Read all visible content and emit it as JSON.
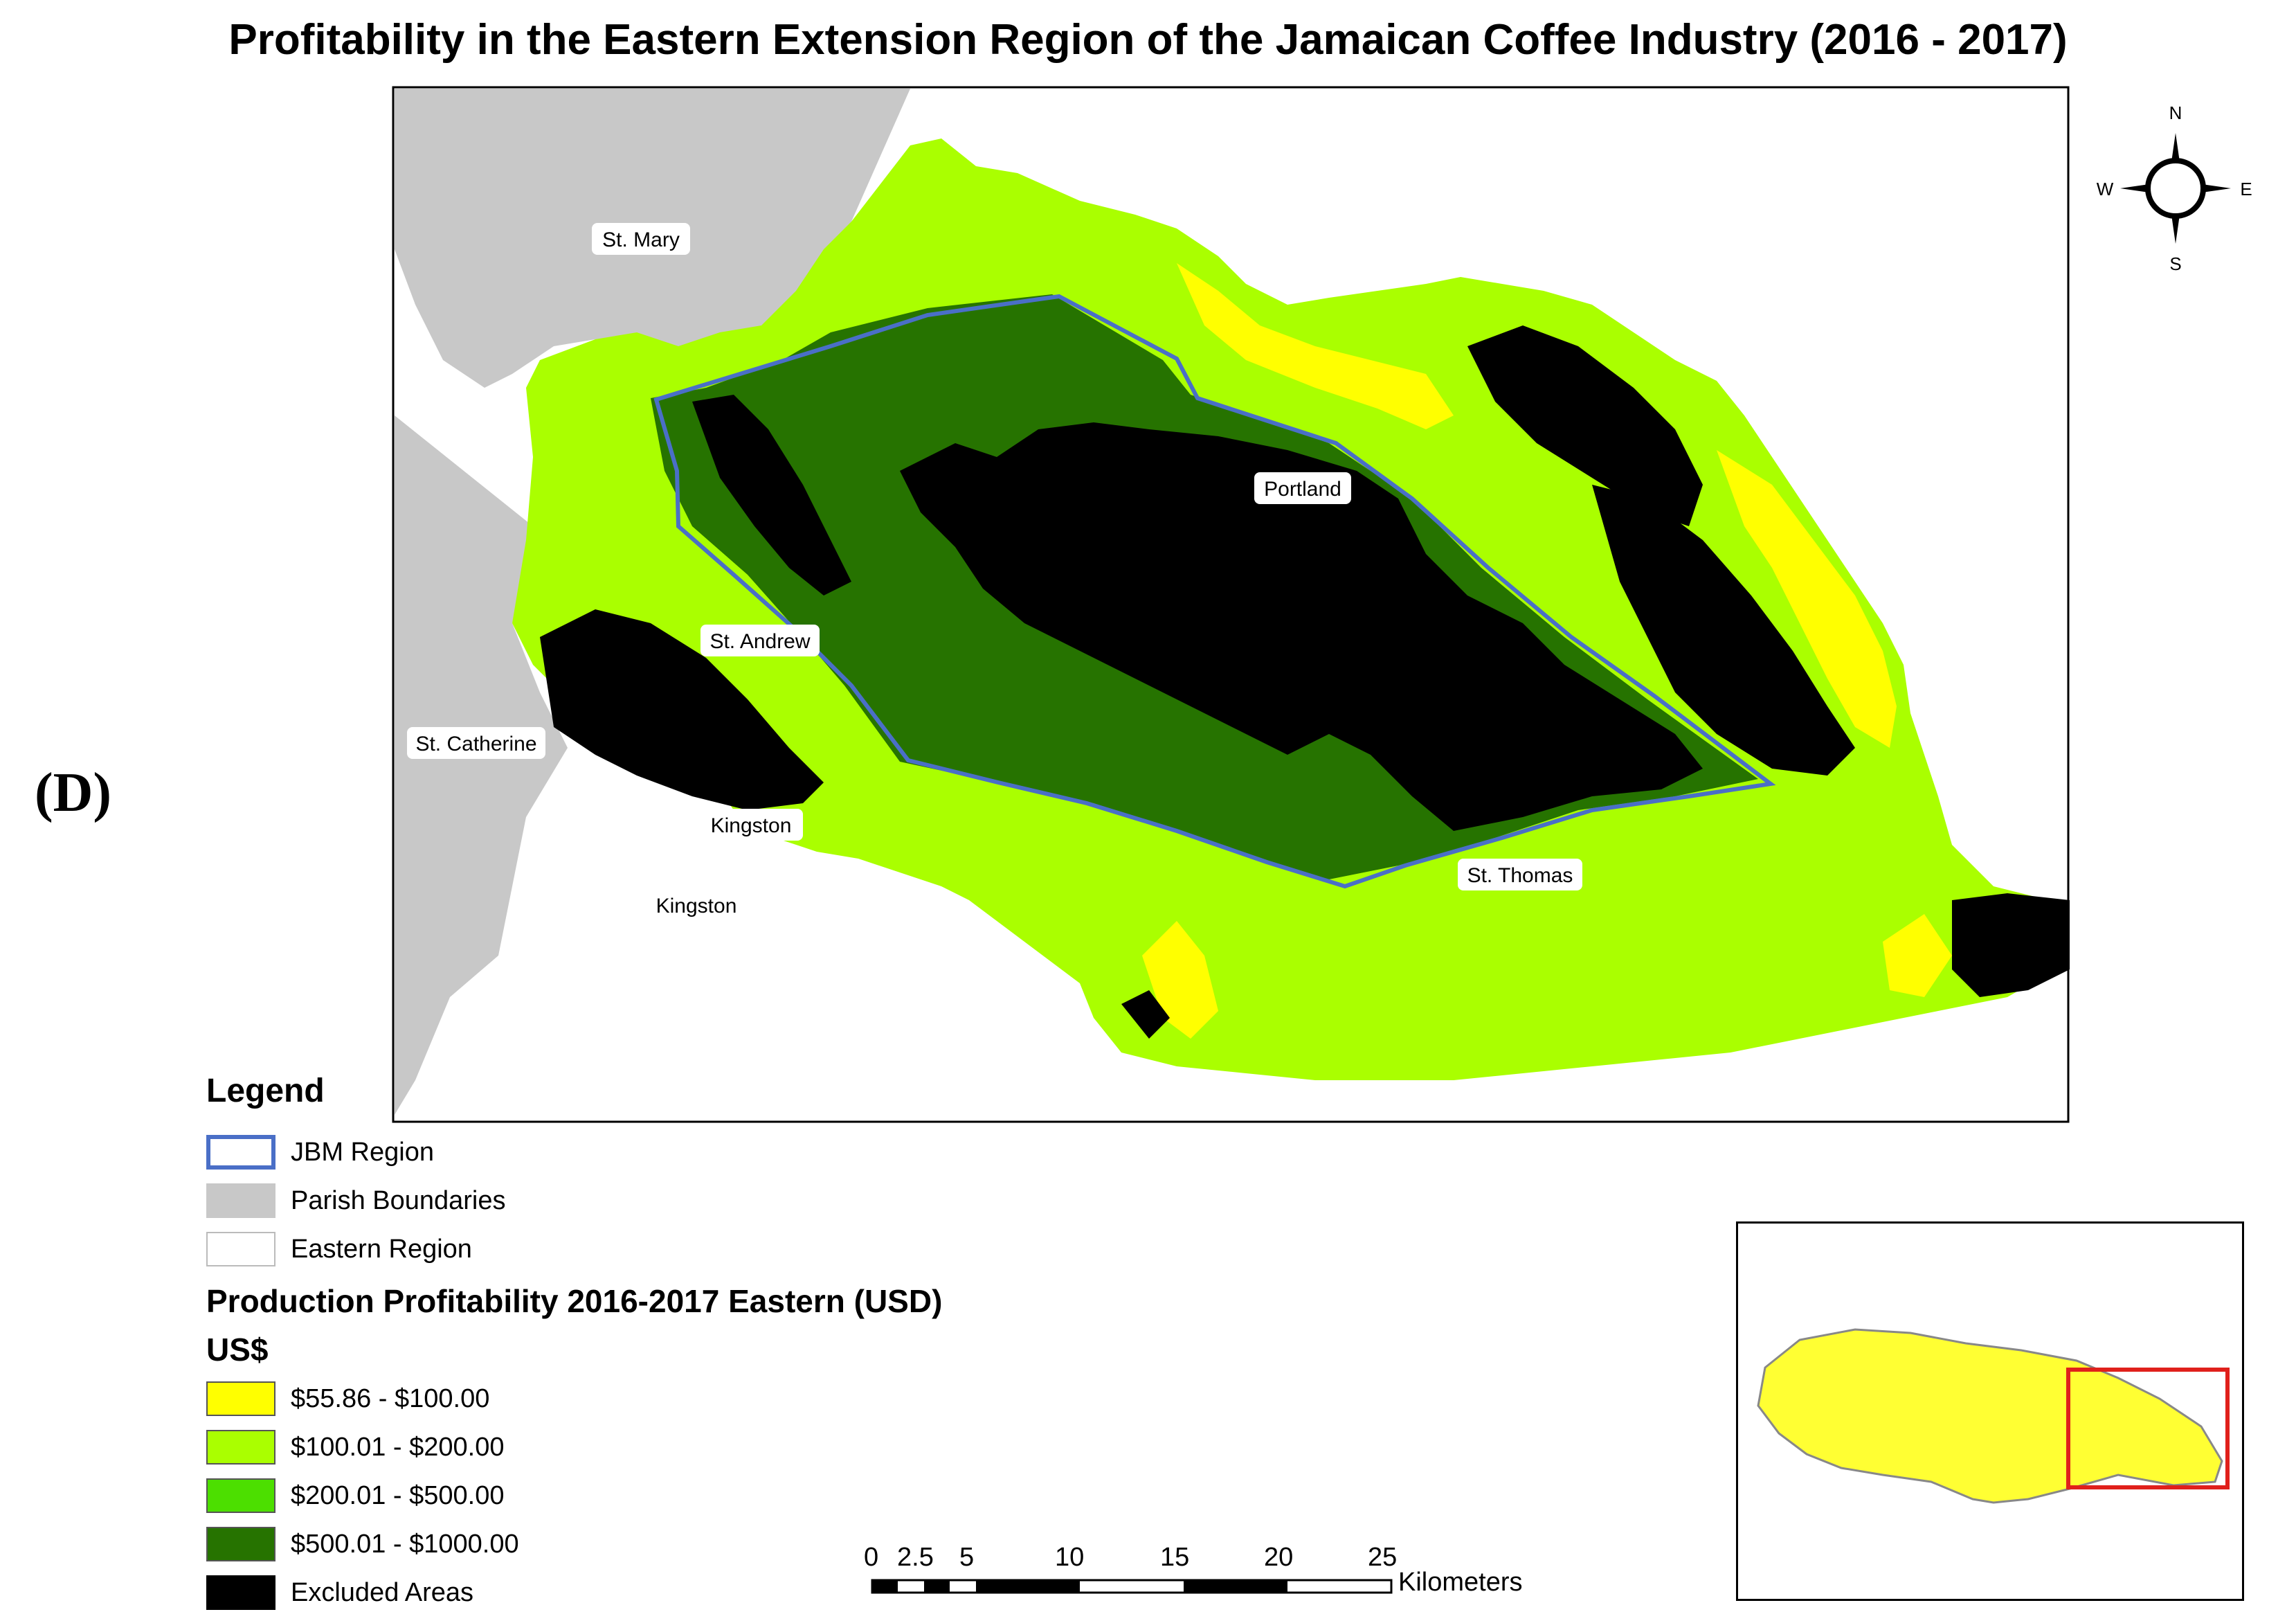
{
  "title": "Profitability in the Eastern Extension Region of the Jamaican Coffee Industry (2016 - 2017)",
  "panel_label": "(D)",
  "parish_labels": {
    "st_mary": "St. Mary",
    "portland": "Portland",
    "st_andrew": "St. Andrew",
    "st_catherine": "St. Catherine",
    "kingston_1": "Kingston",
    "kingston_2": "Kingston",
    "st_thomas": "St. Thomas"
  },
  "compass": {
    "n": "N",
    "s": "S",
    "e": "E",
    "w": "W"
  },
  "legend": {
    "title": "Legend",
    "items": [
      {
        "label": "JBM Region",
        "fill": "#ffffff",
        "stroke": "#4a6fc7"
      },
      {
        "label": "Parish Boundaries",
        "fill": "#c8c8c8",
        "stroke": "#c8c8c8"
      },
      {
        "label": "Eastern Region",
        "fill": "#ffffff",
        "stroke": "#bbbbbb"
      }
    ],
    "profit_title": "Production Profitability 2016-2017 Eastern (USD)",
    "currency": "US$",
    "classes": [
      {
        "label": "$55.86 - $100.00",
        "color": "#ffff00"
      },
      {
        "label": "$100.01 - $200.00",
        "color": "#aaff00"
      },
      {
        "label": "$200.01 - $500.00",
        "color": "#4cdf00"
      },
      {
        "label": "$500.01 - $1000.00",
        "color": "#267300"
      },
      {
        "label": "Excluded Areas",
        "color": "#000000"
      }
    ]
  },
  "scale_bar": {
    "ticks": [
      "0",
      "2.5",
      "5",
      "10",
      "15",
      "20",
      "25"
    ],
    "unit": "Kilometers"
  },
  "colors": {
    "parish_gray": "#c8c8c8",
    "jbm_outline": "#4a6fc7",
    "inset_frame": "#e0201b",
    "inset_fill": "#ffff33"
  }
}
